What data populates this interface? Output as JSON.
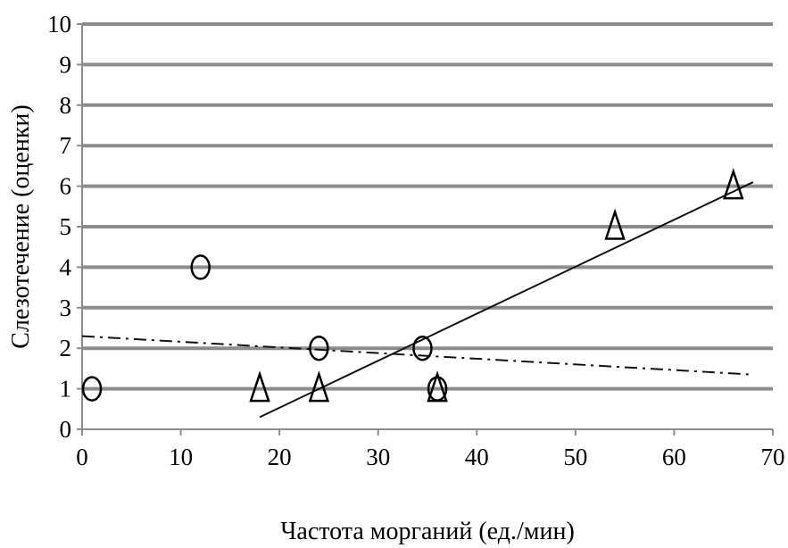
{
  "chart_data": {
    "type": "scatter",
    "xlabel": "Частота морганий (ед./мин)",
    "ylabel": "Слезотечение (оценки)",
    "xlim": [
      0,
      70
    ],
    "ylim": [
      0,
      10
    ],
    "x_ticks": [
      "0",
      "10",
      "20",
      "30",
      "40",
      "50",
      "60",
      "70"
    ],
    "y_ticks": [
      "0",
      "1",
      "2",
      "3",
      "4",
      "5",
      "6",
      "7",
      "8",
      "9",
      "10"
    ],
    "grid": "horizontal",
    "series": [
      {
        "marker": "circle",
        "points": [
          {
            "x": 1,
            "y": 1
          },
          {
            "x": 12,
            "y": 4
          },
          {
            "x": 24,
            "y": 2
          },
          {
            "x": 34.5,
            "y": 2
          },
          {
            "x": 36,
            "y": 1
          }
        ],
        "trendline": {
          "style": "dash-dot",
          "x": [
            0,
            68
          ],
          "y": [
            2.3,
            1.35
          ]
        }
      },
      {
        "marker": "triangle",
        "points": [
          {
            "x": 18,
            "y": 1
          },
          {
            "x": 24,
            "y": 1
          },
          {
            "x": 36,
            "y": 1
          },
          {
            "x": 54,
            "y": 5
          },
          {
            "x": 66,
            "y": 6
          }
        ],
        "trendline": {
          "style": "solid",
          "x": [
            18,
            68
          ],
          "y": [
            0.3,
            6.1
          ]
        }
      }
    ]
  }
}
